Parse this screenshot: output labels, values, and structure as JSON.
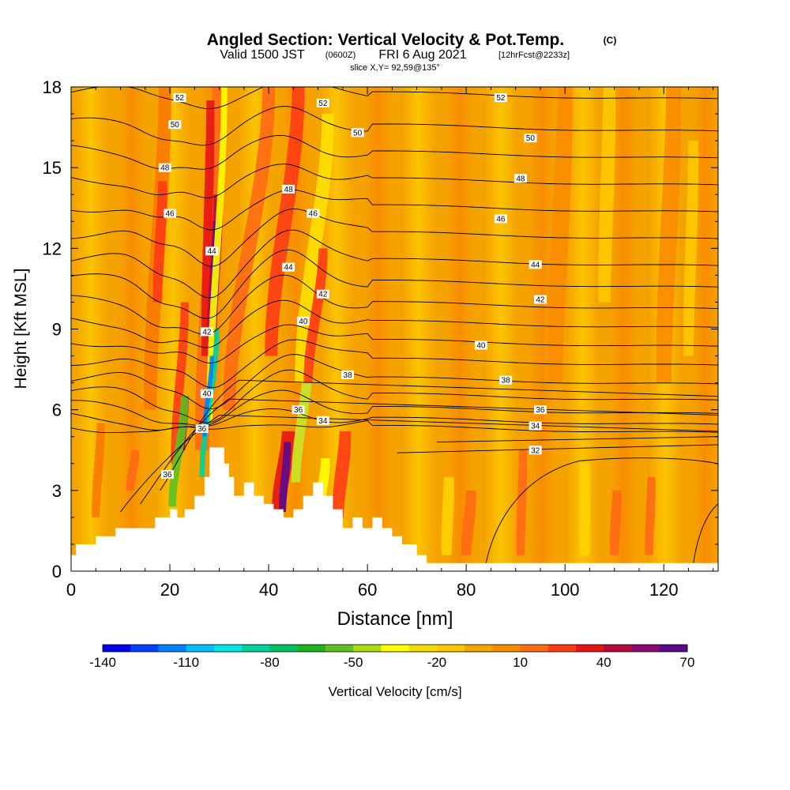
{
  "header": {
    "title_main": "Angled Section: Vertical Velocity & Pot.Temp.",
    "title_units": "(C)",
    "valid_1": "Valid 1500 JST",
    "valid_2": "(0600Z)",
    "valid_3": "FRI 6 Aug 2021",
    "valid_4": "[12hrFcst@2233z]",
    "slice": "slice X,Y= 92,59@135°"
  },
  "chart_data": {
    "type": "heatmap",
    "title": "Angled Section: Vertical Velocity & Pot.Temp.",
    "xlabel": "Distance [nm]",
    "ylabel": "Height [Kft MSL]",
    "xlim": [
      0,
      131
    ],
    "ylim": [
      0,
      18
    ],
    "x_ticks": [
      "0",
      "20",
      "40",
      "60",
      "80",
      "100",
      "120"
    ],
    "y_ticks": [
      "0",
      "3",
      "6",
      "9",
      "12",
      "15",
      "18"
    ],
    "fill_variable": "Vertical Velocity [cm/s]",
    "contour_variable": "Pot.Temp. (C)",
    "background_fill_color": "#f5a300",
    "colorbar": {
      "label": "Vertical Velocity [cm/s]",
      "tick_labels": [
        "-140",
        "-110",
        "-80",
        "-50",
        "-20",
        "10",
        "40",
        "70"
      ],
      "colors": [
        "#0000ee",
        "#0040ff",
        "#0080ff",
        "#00c0ff",
        "#00e6e6",
        "#00d29a",
        "#00c060",
        "#20b020",
        "#60c020",
        "#a8dc18",
        "#ffff00",
        "#f0dc00",
        "#ffc800",
        "#f5a300",
        "#fa8c00",
        "#ff6a14",
        "#ff3c14",
        "#e61414",
        "#b40a3c",
        "#8c0a6e",
        "#5a0a8c"
      ]
    },
    "terrain_profile": {
      "x": [
        0,
        1,
        5,
        9,
        13,
        17,
        20,
        21.5,
        23,
        25,
        27,
        28,
        31,
        32,
        33,
        35,
        37,
        39,
        41,
        43,
        45,
        47,
        49,
        51,
        53,
        55,
        57,
        59,
        61,
        63,
        65,
        67,
        70,
        72,
        74,
        131
      ],
      "height": [
        0.6,
        1.0,
        1.3,
        1.6,
        1.6,
        2.0,
        2.3,
        2.0,
        2.3,
        2.8,
        3.5,
        4.6,
        4.0,
        3.5,
        2.8,
        3.3,
        2.8,
        2.5,
        2.3,
        2.0,
        2.3,
        2.8,
        3.3,
        2.8,
        2.3,
        1.6,
        2.0,
        1.6,
        2.0,
        1.6,
        1.3,
        1.0,
        0.6,
        0.3,
        0.3,
        0.3
      ]
    },
    "contour_labels": [
      {
        "text": "52",
        "x": 22,
        "y": 17.6
      },
      {
        "text": "52",
        "x": 51,
        "y": 17.4
      },
      {
        "text": "52",
        "x": 87,
        "y": 17.6
      },
      {
        "text": "50",
        "x": 21,
        "y": 16.6
      },
      {
        "text": "50",
        "x": 58,
        "y": 16.3
      },
      {
        "text": "50",
        "x": 93,
        "y": 16.1
      },
      {
        "text": "48",
        "x": 19,
        "y": 15.0
      },
      {
        "text": "48",
        "x": 44,
        "y": 14.2
      },
      {
        "text": "48",
        "x": 91,
        "y": 14.6
      },
      {
        "text": "46",
        "x": 20,
        "y": 13.3
      },
      {
        "text": "46",
        "x": 49,
        "y": 13.3
      },
      {
        "text": "46",
        "x": 87,
        "y": 13.1
      },
      {
        "text": "44",
        "x": 28.5,
        "y": 11.9
      },
      {
        "text": "44",
        "x": 44,
        "y": 11.3
      },
      {
        "text": "44",
        "x": 94,
        "y": 11.4
      },
      {
        "text": "42",
        "x": 51,
        "y": 10.3
      },
      {
        "text": "42",
        "x": 95,
        "y": 10.1
      },
      {
        "text": "42",
        "x": 27.5,
        "y": 8.9
      },
      {
        "text": "40",
        "x": 47,
        "y": 9.3
      },
      {
        "text": "40",
        "x": 83,
        "y": 8.4
      },
      {
        "text": "40",
        "x": 27.5,
        "y": 6.6
      },
      {
        "text": "38",
        "x": 56,
        "y": 7.3
      },
      {
        "text": "38",
        "x": 88,
        "y": 7.1
      },
      {
        "text": "36",
        "x": 95,
        "y": 6.0
      },
      {
        "text": "36",
        "x": 46,
        "y": 6.0
      },
      {
        "text": "36",
        "x": 26.5,
        "y": 5.3
      },
      {
        "text": "36",
        "x": 19.5,
        "y": 3.6
      },
      {
        "text": "34",
        "x": 51,
        "y": 5.6
      },
      {
        "text": "34",
        "x": 94,
        "y": 5.4
      },
      {
        "text": "32",
        "x": 94,
        "y": 4.5
      }
    ]
  }
}
